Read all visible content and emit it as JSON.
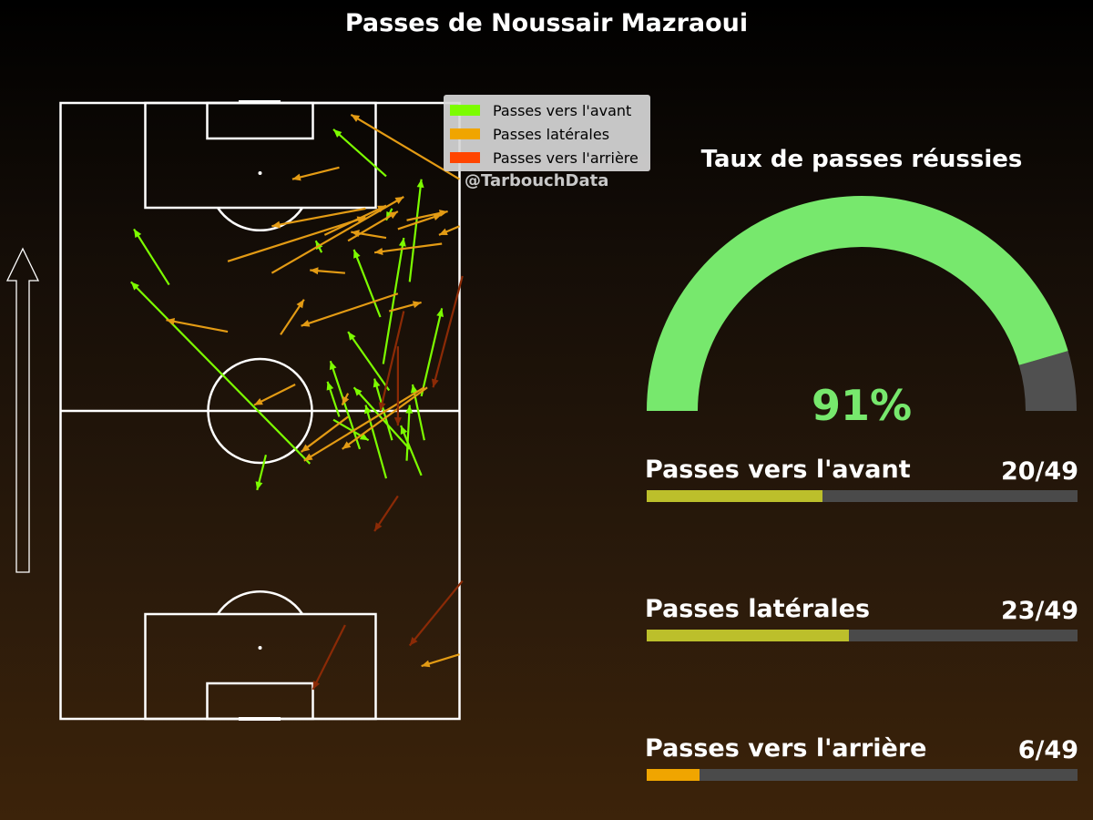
{
  "title": "Passes de Noussair Mazraoui",
  "watermark": "@TarbouchData",
  "colors": {
    "forward": "#7cfc00",
    "lateral": "#f0a500",
    "backward": "#ff4500",
    "gauge_success": "#77e86d",
    "gauge_rest": "#505050",
    "bar_forward": "#bcbf2b",
    "bar_lateral": "#bcbf2b",
    "bar_backward": "#f0a500",
    "bar_track": "#4a4a4a"
  },
  "legend": [
    {
      "key": "forward",
      "label": "Passes vers l'avant"
    },
    {
      "key": "lateral",
      "label": "Passes latérales"
    },
    {
      "key": "backward",
      "label": "Passes vers l'arrière"
    }
  ],
  "gauge": {
    "title": "Taux de passes réussies",
    "value": 91,
    "value_label": "91%"
  },
  "stats": [
    {
      "key": "forward",
      "label": "Passes vers l'avant",
      "count": 20,
      "total": 49,
      "count_label": "20/49"
    },
    {
      "key": "lateral",
      "label": "Passes latérales",
      "count": 23,
      "total": 49,
      "count_label": "23/49"
    },
    {
      "key": "backward",
      "label": "Passes vers l'arrière",
      "count": 6,
      "total": 49,
      "count_label": "6/49"
    }
  ],
  "chart_data": {
    "type": "scatter",
    "description_units": "pitch coordinates, x = width 0-68 (left to right), y = length 0-105 (own goal at 0, attacking goal at 105)",
    "attack_direction": "up",
    "passes": [
      {
        "type": "forward",
        "start": [
          42.5,
          43.5
        ],
        "end": [
          12,
          74.5
        ]
      },
      {
        "type": "forward",
        "start": [
          18.5,
          74
        ],
        "end": [
          12.5,
          83.5
        ]
      },
      {
        "type": "forward",
        "start": [
          55.5,
          92.5
        ],
        "end": [
          46.5,
          100.5
        ]
      },
      {
        "type": "forward",
        "start": [
          59.5,
          74.5
        ],
        "end": [
          61.5,
          92
        ]
      },
      {
        "type": "forward",
        "start": [
          55,
          60.5
        ],
        "end": [
          58.5,
          82
        ]
      },
      {
        "type": "forward",
        "start": [
          54.5,
          68.5
        ],
        "end": [
          50,
          80
        ]
      },
      {
        "type": "forward",
        "start": [
          56,
          56
        ],
        "end": [
          49,
          66
        ]
      },
      {
        "type": "forward",
        "start": [
          51,
          46
        ],
        "end": [
          46,
          61
        ]
      },
      {
        "type": "forward",
        "start": [
          59.5,
          46
        ],
        "end": [
          50,
          56.5
        ]
      },
      {
        "type": "forward",
        "start": [
          55.5,
          41
        ],
        "end": [
          52,
          53.5
        ]
      },
      {
        "type": "forward",
        "start": [
          56.5,
          47.5
        ],
        "end": [
          53.5,
          58
        ]
      },
      {
        "type": "forward",
        "start": [
          59,
          44
        ],
        "end": [
          59.5,
          53.5
        ]
      },
      {
        "type": "forward",
        "start": [
          61.5,
          41.5
        ],
        "end": [
          58,
          50
        ]
      },
      {
        "type": "forward",
        "start": [
          61.5,
          55
        ],
        "end": [
          65,
          70
        ]
      },
      {
        "type": "forward",
        "start": [
          47.5,
          51.5
        ],
        "end": [
          45.5,
          57.5
        ]
      },
      {
        "type": "forward",
        "start": [
          44.5,
          79.5
        ],
        "end": [
          43.5,
          81.5
        ]
      },
      {
        "type": "forward",
        "start": [
          62,
          47.5
        ],
        "end": [
          60,
          57
        ]
      },
      {
        "type": "forward",
        "start": [
          46.5,
          51
        ],
        "end": [
          52.5,
          47.5
        ]
      },
      {
        "type": "forward",
        "start": [
          35,
          45
        ],
        "end": [
          33.5,
          39
        ]
      },
      {
        "type": "forward",
        "start": [
          56.5,
          87
        ],
        "end": [
          55.5,
          85
        ]
      },
      {
        "type": "lateral",
        "start": [
          52,
          87
        ],
        "end": [
          36,
          84
        ]
      },
      {
        "type": "lateral",
        "start": [
          47.5,
          94
        ],
        "end": [
          39.5,
          92
        ]
      },
      {
        "type": "lateral",
        "start": [
          68,
          92
        ],
        "end": [
          49.5,
          103
        ]
      },
      {
        "type": "lateral",
        "start": [
          28.5,
          78
        ],
        "end": [
          52,
          85.5
        ]
      },
      {
        "type": "lateral",
        "start": [
          45,
          82.5
        ],
        "end": [
          55.5,
          87.5
        ]
      },
      {
        "type": "lateral",
        "start": [
          49,
          81.5
        ],
        "end": [
          57.5,
          86.5
        ]
      },
      {
        "type": "lateral",
        "start": [
          36,
          76
        ],
        "end": [
          58.5,
          89
        ]
      },
      {
        "type": "lateral",
        "start": [
          55.5,
          82
        ],
        "end": [
          49.5,
          83
        ]
      },
      {
        "type": "lateral",
        "start": [
          65,
          81
        ],
        "end": [
          53.5,
          79.5
        ]
      },
      {
        "type": "lateral",
        "start": [
          57.5,
          83.5
        ],
        "end": [
          65,
          86
        ]
      },
      {
        "type": "lateral",
        "start": [
          68,
          84
        ],
        "end": [
          64.5,
          82.5
        ]
      },
      {
        "type": "lateral",
        "start": [
          48.5,
          76
        ],
        "end": [
          42.5,
          76.5
        ]
      },
      {
        "type": "lateral",
        "start": [
          57.5,
          72.5
        ],
        "end": [
          41,
          67
        ]
      },
      {
        "type": "lateral",
        "start": [
          28.5,
          66
        ],
        "end": [
          18,
          68
        ]
      },
      {
        "type": "lateral",
        "start": [
          37.5,
          65.5
        ],
        "end": [
          41.5,
          71.5
        ]
      },
      {
        "type": "lateral",
        "start": [
          56,
          69.5
        ],
        "end": [
          61.5,
          71
        ]
      },
      {
        "type": "lateral",
        "start": [
          49,
          55.5
        ],
        "end": [
          48,
          53.5
        ]
      },
      {
        "type": "lateral",
        "start": [
          62.5,
          56.5
        ],
        "end": [
          48,
          46
        ]
      },
      {
        "type": "lateral",
        "start": [
          40,
          57
        ],
        "end": [
          33,
          53.5
        ]
      },
      {
        "type": "lateral",
        "start": [
          49,
          51.5
        ],
        "end": [
          41,
          45.5
        ]
      },
      {
        "type": "lateral",
        "start": [
          62,
          56.5
        ],
        "end": [
          41.5,
          44
        ]
      },
      {
        "type": "lateral",
        "start": [
          68,
          11
        ],
        "end": [
          61.5,
          9
        ]
      },
      {
        "type": "lateral",
        "start": [
          59,
          85
        ],
        "end": [
          66,
          86.5
        ]
      },
      {
        "type": "backward",
        "start": [
          68.5,
          75.5
        ],
        "end": [
          63.5,
          56.5
        ]
      },
      {
        "type": "backward",
        "start": [
          58.5,
          69.5
        ],
        "end": [
          54.5,
          52.5
        ]
      },
      {
        "type": "backward",
        "start": [
          57.5,
          63.5
        ],
        "end": [
          57.5,
          50
        ]
      },
      {
        "type": "backward",
        "start": [
          57.5,
          38
        ],
        "end": [
          53.5,
          32
        ]
      },
      {
        "type": "backward",
        "start": [
          68.5,
          23.5
        ],
        "end": [
          59.5,
          12.5
        ]
      },
      {
        "type": "backward",
        "start": [
          48.5,
          16
        ],
        "end": [
          43,
          5
        ]
      }
    ],
    "ylim": [
      0,
      105
    ],
    "xlim": [
      0,
      68
    ]
  }
}
